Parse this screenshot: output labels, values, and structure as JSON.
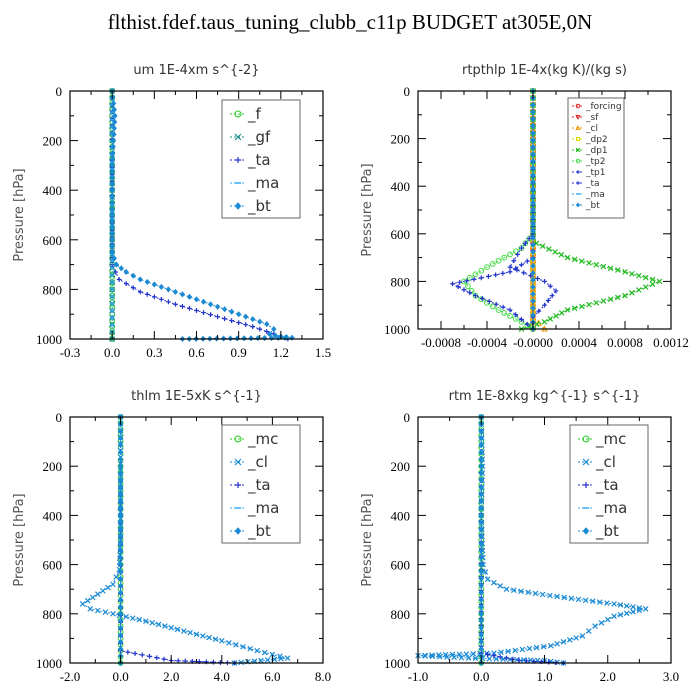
{
  "figure_title": "flthist.fdef.taus_tuning_clubb_c11p  BUDGET at305E,0N",
  "chart_data": [
    {
      "type": "line",
      "title": "um   1E-4xm s^{-2}",
      "ylabel": "Pressure [hPa]",
      "xlim": [
        -0.3,
        1.5
      ],
      "ylim": [
        1000,
        0
      ],
      "xticks": [
        "-0.3",
        "0.0",
        "0.3",
        "0.6",
        "0.9",
        "1.2",
        "1.5"
      ],
      "xtick_values": [
        -0.3,
        0,
        0.3,
        0.6,
        0.9,
        1.2,
        1.5
      ],
      "yticks": [
        "0",
        "200",
        "400",
        "600",
        "800",
        "1000"
      ],
      "ytick_values": [
        0,
        200,
        400,
        600,
        800,
        1000
      ],
      "legend_small": false,
      "series": [
        {
          "name": "_f",
          "color": "#22cc22",
          "marker": "o",
          "points": [
            [
              0.0,
              0
            ],
            [
              0.0,
              100
            ],
            [
              0.0,
              200
            ],
            [
              0.0,
              300
            ],
            [
              0.0,
              400
            ],
            [
              0.0,
              500
            ],
            [
              0.0,
              600
            ],
            [
              0.0,
              700
            ],
            [
              0.0,
              800
            ],
            [
              0.0,
              900
            ],
            [
              0.0,
              1000
            ]
          ]
        },
        {
          "name": "_gf",
          "color": "#1a8a8a",
          "marker": "x",
          "points": [
            [
              0.0,
              0
            ],
            [
              0.0,
              200
            ],
            [
              0.0,
              400
            ],
            [
              0.0,
              600
            ],
            [
              0.0,
              800
            ],
            [
              0.0,
              1000
            ]
          ]
        },
        {
          "name": "_ta",
          "color": "#2233cc",
          "marker": "+",
          "points": [
            [
              0.0,
              0
            ],
            [
              0.0,
              700
            ],
            [
              0.05,
              760
            ],
            [
              0.2,
              810
            ],
            [
              0.45,
              860
            ],
            [
              0.75,
              910
            ],
            [
              1.0,
              950
            ],
            [
              1.2,
              990
            ],
            [
              1.25,
              1000
            ]
          ]
        },
        {
          "name": "_ma",
          "color": "#33aaee",
          "marker": "-",
          "points": [
            [
              0.0,
              0
            ],
            [
              0.0,
              1000
            ]
          ]
        },
        {
          "name": "_bt",
          "color": "#1a8ad4",
          "marker": "d",
          "points": [
            [
              0.0,
              0
            ],
            [
              0.02,
              100
            ],
            [
              0.01,
              200
            ],
            [
              0.0,
              300
            ],
            [
              0.0,
              400
            ],
            [
              0.0,
              500
            ],
            [
              0.0,
              600
            ],
            [
              0.0,
              650
            ],
            [
              0.03,
              700
            ],
            [
              0.1,
              730
            ],
            [
              0.2,
              760
            ],
            [
              0.35,
              790
            ],
            [
              0.5,
              820
            ],
            [
              0.65,
              850
            ],
            [
              0.8,
              880
            ],
            [
              0.95,
              910
            ],
            [
              1.1,
              940
            ],
            [
              1.15,
              960
            ],
            [
              1.12,
              980
            ],
            [
              1.2,
              990
            ],
            [
              1.28,
              995
            ],
            [
              0.5,
              1000
            ]
          ]
        }
      ]
    },
    {
      "type": "line",
      "title": "rtpthlp   1E-4x(kg K)/(kg s)",
      "ylabel": "Pressure [hPa]",
      "xlim": [
        -0.001,
        0.0012
      ],
      "ylim": [
        1000,
        0
      ],
      "xticks": [
        "-0.0008",
        "-0.0004",
        "-0.0000",
        "0.0004",
        "0.0008",
        "0.0012"
      ],
      "xtick_values": [
        -0.0008,
        -0.0004,
        0,
        0.0004,
        0.0008,
        0.0012
      ],
      "yticks": [
        "0",
        "200",
        "400",
        "600",
        "800",
        "1000"
      ],
      "ytick_values": [
        0,
        200,
        400,
        600,
        800,
        1000
      ],
      "legend_small": true,
      "series": [
        {
          "name": "_forcing",
          "color": "#dd2222",
          "marker": "o",
          "points": [
            [
              0,
              0
            ],
            [
              0,
              200
            ],
            [
              0,
              400
            ],
            [
              0,
              600
            ],
            [
              0,
              800
            ],
            [
              0,
              1000
            ]
          ]
        },
        {
          "name": "_sf",
          "color": "#dd2222",
          "marker": "v",
          "points": [
            [
              0,
              0
            ],
            [
              0,
              1000
            ]
          ]
        },
        {
          "name": "_cl",
          "color": "#ee9900",
          "marker": "^",
          "points": [
            [
              0,
              0
            ],
            [
              0,
              950
            ],
            [
              0.0001,
              1000
            ]
          ]
        },
        {
          "name": "_dp2",
          "color": "#dddd00",
          "marker": "s",
          "points": [
            [
              0,
              0
            ],
            [
              0,
              1000
            ]
          ]
        },
        {
          "name": "_dp1",
          "color": "#22bb22",
          "marker": "x",
          "points": [
            [
              0,
              0
            ],
            [
              0,
              600
            ],
            [
              3e-05,
              640
            ],
            [
              0.0003,
              700
            ],
            [
              0.0008,
              760
            ],
            [
              0.0011,
              800
            ],
            [
              0.0008,
              860
            ],
            [
              0.0003,
              920
            ],
            [
              0.0001,
              970
            ],
            [
              -0.0001,
              1000
            ]
          ]
        },
        {
          "name": "_tp2",
          "color": "#44dd44",
          "marker": "o",
          "points": [
            [
              0,
              0
            ],
            [
              0,
              600
            ],
            [
              -0.0001,
              660
            ],
            [
              -0.0004,
              740
            ],
            [
              -0.0006,
              800
            ],
            [
              -0.0005,
              860
            ],
            [
              -0.0003,
              920
            ],
            [
              -0.0001,
              970
            ],
            [
              0,
              1000
            ]
          ]
        },
        {
          "name": "_tp1",
          "color": "#2233cc",
          "marker": "+",
          "points": [
            [
              0,
              0
            ],
            [
              0,
              600
            ],
            [
              -0.0001,
              660
            ],
            [
              -0.0002,
              740
            ],
            [
              0.0001,
              800
            ],
            [
              0.0002,
              840
            ],
            [
              0.0001,
              900
            ],
            [
              0,
              950
            ],
            [
              0,
              1000
            ]
          ]
        },
        {
          "name": "_ta",
          "color": "#2233cc",
          "marker": "+",
          "points": [
            [
              0,
              0
            ],
            [
              0,
              700
            ],
            [
              -0.0002,
              760
            ],
            [
              -0.0007,
              810
            ],
            [
              -0.0005,
              860
            ],
            [
              -0.0002,
              920
            ],
            [
              0,
              1000
            ]
          ]
        },
        {
          "name": "_ma",
          "color": "#33aaee",
          "marker": "-",
          "points": [
            [
              0,
              0
            ],
            [
              0,
              1000
            ]
          ]
        },
        {
          "name": "_bt",
          "color": "#1a8ad4",
          "marker": "d",
          "points": [
            [
              0,
              0
            ],
            [
              0,
              1000
            ]
          ]
        }
      ]
    },
    {
      "type": "line",
      "title": "thlm   1E-5xK s^{-1}",
      "ylabel": "Pressure [hPa]",
      "xlim": [
        -2.0,
        8.0
      ],
      "ylim": [
        1000,
        0
      ],
      "xticks": [
        "-2.0",
        "0.0",
        "2.0",
        "4.0",
        "6.0",
        "8.0"
      ],
      "xtick_values": [
        -2,
        0,
        2,
        4,
        6,
        8
      ],
      "yticks": [
        "0",
        "200",
        "400",
        "600",
        "800",
        "1000"
      ],
      "ytick_values": [
        0,
        200,
        400,
        600,
        800,
        1000
      ],
      "legend_small": false,
      "series": [
        {
          "name": "_mc",
          "color": "#22cc22",
          "marker": "o",
          "points": [
            [
              0,
              0
            ],
            [
              0,
              100
            ],
            [
              0,
              200
            ],
            [
              0,
              300
            ],
            [
              0,
              400
            ],
            [
              0,
              500
            ],
            [
              0,
              600
            ],
            [
              0,
              700
            ],
            [
              0,
              800
            ],
            [
              0,
              900
            ],
            [
              0,
              1000
            ]
          ]
        },
        {
          "name": "_cl",
          "color": "#1a8ad4",
          "marker": "x",
          "points": [
            [
              0,
              0
            ],
            [
              0,
              300
            ],
            [
              0,
              500
            ],
            [
              -0.05,
              620
            ],
            [
              -0.3,
              680
            ],
            [
              -0.9,
              720
            ],
            [
              -1.5,
              760
            ],
            [
              -1.2,
              780
            ],
            [
              -0.3,
              800
            ],
            [
              1.0,
              830
            ],
            [
              2.5,
              870
            ],
            [
              4.0,
              910
            ],
            [
              5.4,
              950
            ],
            [
              6.6,
              980
            ],
            [
              4.5,
              1000
            ]
          ]
        },
        {
          "name": "_ta",
          "color": "#2233cc",
          "marker": "+",
          "points": [
            [
              0,
              0
            ],
            [
              0,
              950
            ],
            [
              2.0,
              990
            ],
            [
              4.5,
              1000
            ]
          ]
        },
        {
          "name": "_ma",
          "color": "#33aaee",
          "marker": "-",
          "points": [
            [
              0,
              0
            ],
            [
              0,
              1000
            ]
          ]
        },
        {
          "name": "_bt",
          "color": "#1a8ad4",
          "marker": "d",
          "points": [
            [
              0,
              0
            ],
            [
              0,
              1000
            ]
          ]
        }
      ]
    },
    {
      "type": "line",
      "title": "rtm   1E-8xkg kg^{-1} s^{-1}",
      "ylabel": "Pressure [hPa]",
      "xlim": [
        -1.0,
        3.0
      ],
      "ylim": [
        1000,
        0
      ],
      "xticks": [
        "-1.0",
        "0.0",
        "1.0",
        "2.0",
        "3.0"
      ],
      "xtick_values": [
        -1,
        0,
        1,
        2,
        3
      ],
      "yticks": [
        "0",
        "200",
        "400",
        "600",
        "800",
        "1000"
      ],
      "ytick_values": [
        0,
        200,
        400,
        600,
        800,
        1000
      ],
      "legend_small": false,
      "series": [
        {
          "name": "_mc",
          "color": "#22cc22",
          "marker": "o",
          "points": [
            [
              0,
              0
            ],
            [
              0,
              100
            ],
            [
              0,
              200
            ],
            [
              0,
              300
            ],
            [
              0,
              400
            ],
            [
              0,
              500
            ],
            [
              0,
              600
            ],
            [
              0,
              700
            ],
            [
              0,
              800
            ],
            [
              0,
              900
            ],
            [
              0,
              1000
            ]
          ]
        },
        {
          "name": "_cl",
          "color": "#1a8ad4",
          "marker": "x",
          "points": [
            [
              0,
              0
            ],
            [
              0.02,
              200
            ],
            [
              0,
              400
            ],
            [
              0.03,
              600
            ],
            [
              0.1,
              660
            ],
            [
              0.4,
              700
            ],
            [
              1.2,
              730
            ],
            [
              2.1,
              760
            ],
            [
              2.6,
              780
            ],
            [
              2.1,
              810
            ],
            [
              1.8,
              850
            ],
            [
              1.6,
              890
            ],
            [
              1.1,
              930
            ],
            [
              0.2,
              960
            ],
            [
              -1.0,
              970
            ],
            [
              -0.2,
              980
            ],
            [
              1.0,
              990
            ],
            [
              1.3,
              1000
            ]
          ]
        },
        {
          "name": "_ta",
          "color": "#2233cc",
          "marker": "+",
          "points": [
            [
              0,
              0
            ],
            [
              0,
              960
            ],
            [
              0.6,
              990
            ],
            [
              1.3,
              1000
            ]
          ]
        },
        {
          "name": "_ma",
          "color": "#33aaee",
          "marker": "-",
          "points": [
            [
              0,
              0
            ],
            [
              0,
              1000
            ]
          ]
        },
        {
          "name": "_bt",
          "color": "#1a8ad4",
          "marker": "d",
          "points": [
            [
              0,
              0
            ],
            [
              0,
              1000
            ]
          ]
        }
      ]
    }
  ]
}
